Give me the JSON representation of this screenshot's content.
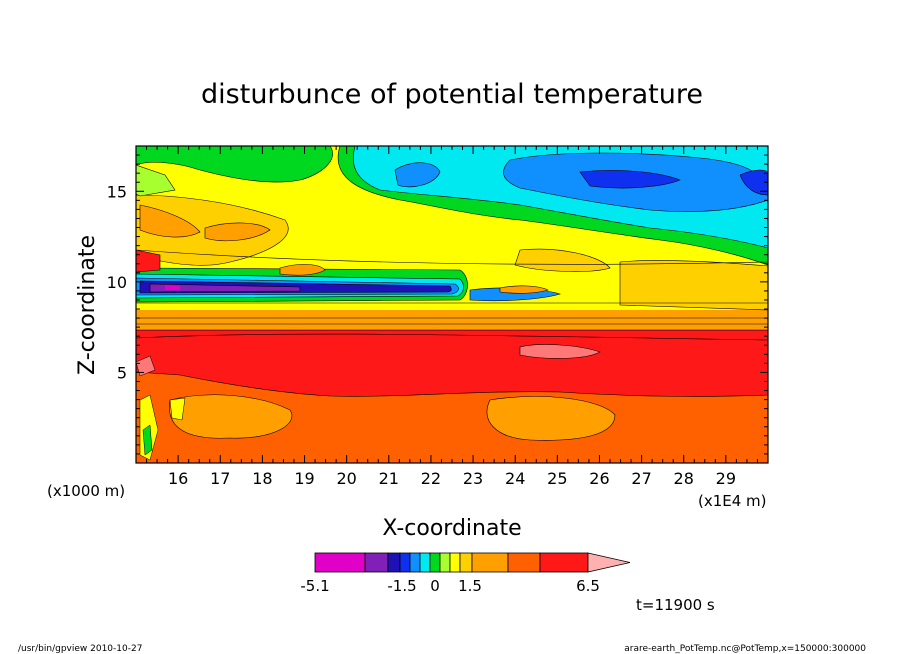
{
  "chart_data": {
    "type": "heatmap",
    "title": "disturbunce of potential temperature",
    "xlabel": "X-coordinate",
    "ylabel": "Z-coordinate",
    "x_units": "(x1000 m)",
    "x_scale_note": "(x1E4 m)",
    "x_ticks": [
      "16",
      "17",
      "18",
      "19",
      "20",
      "21",
      "22",
      "23",
      "24",
      "25",
      "26",
      "27",
      "28",
      "29"
    ],
    "y_ticks": [
      "5",
      "10",
      "15"
    ],
    "xlim": [
      15,
      30
    ],
    "ylim": [
      0,
      17.5
    ],
    "colorbar": {
      "colors": [
        "#e000c8",
        "#8020b8",
        "#2010b8",
        "#1030f0",
        "#1090ff",
        "#00e8f0",
        "#00d820",
        "#a8ff30",
        "#ffff00",
        "#ffd000",
        "#ffa000",
        "#ff6000",
        "#ff1818",
        "#ff7878",
        "#ffb0b0"
      ],
      "tick_labels": [
        "-5.1",
        "-1.5",
        "0",
        "1.5",
        "6.5"
      ]
    },
    "time_label": "t=11900 s"
  },
  "footer": {
    "left": "/usr/bin/gpview   2010-10-27",
    "right": "arare-earth_PotTemp.nc@PotTemp,x=150000:300000"
  }
}
